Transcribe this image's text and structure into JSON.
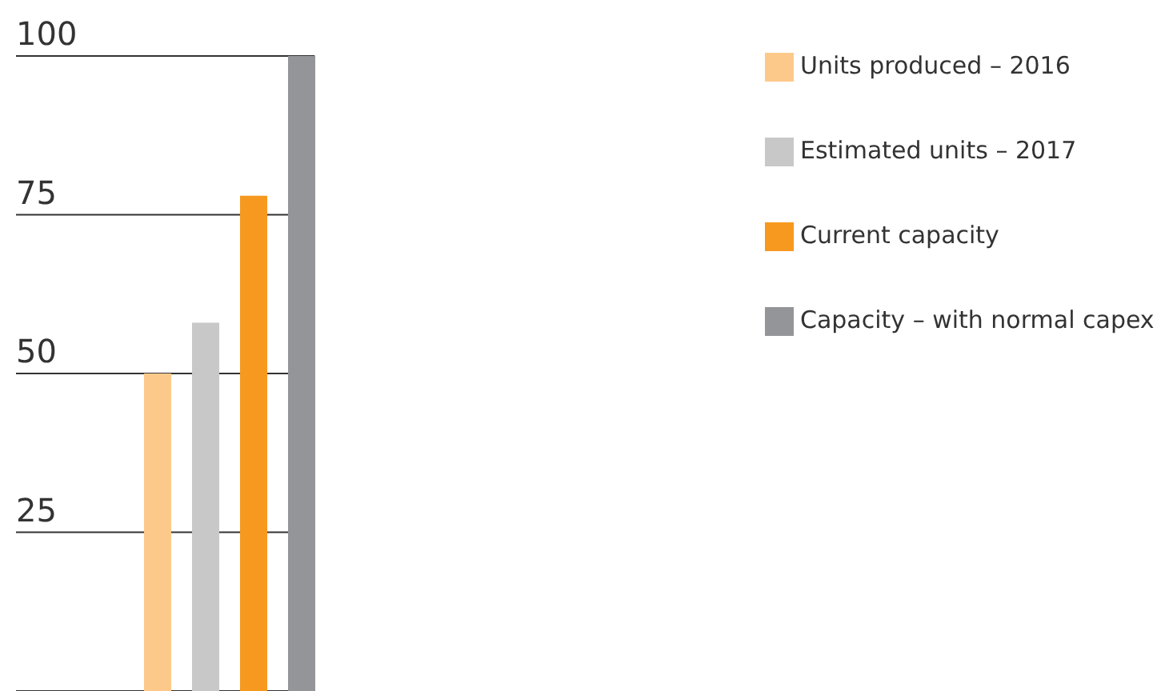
{
  "chart_data": {
    "type": "bar",
    "categories": [
      null
    ],
    "series": [
      {
        "name": "Units produced – 2016",
        "color": "#fdc98a",
        "values": [
          50
        ]
      },
      {
        "name": "Estimated units – 2017",
        "color": "#c8c8c9",
        "values": [
          58
        ]
      },
      {
        "name": "Current capacity",
        "color": "#f7991f",
        "values": [
          78
        ]
      },
      {
        "name": "Capacity – with normal capex",
        "color": "#939598",
        "values": [
          100
        ]
      }
    ],
    "ylim": [
      0,
      100
    ],
    "yticks": [
      25,
      50,
      75,
      100
    ],
    "grid": "y",
    "legend": "right"
  }
}
